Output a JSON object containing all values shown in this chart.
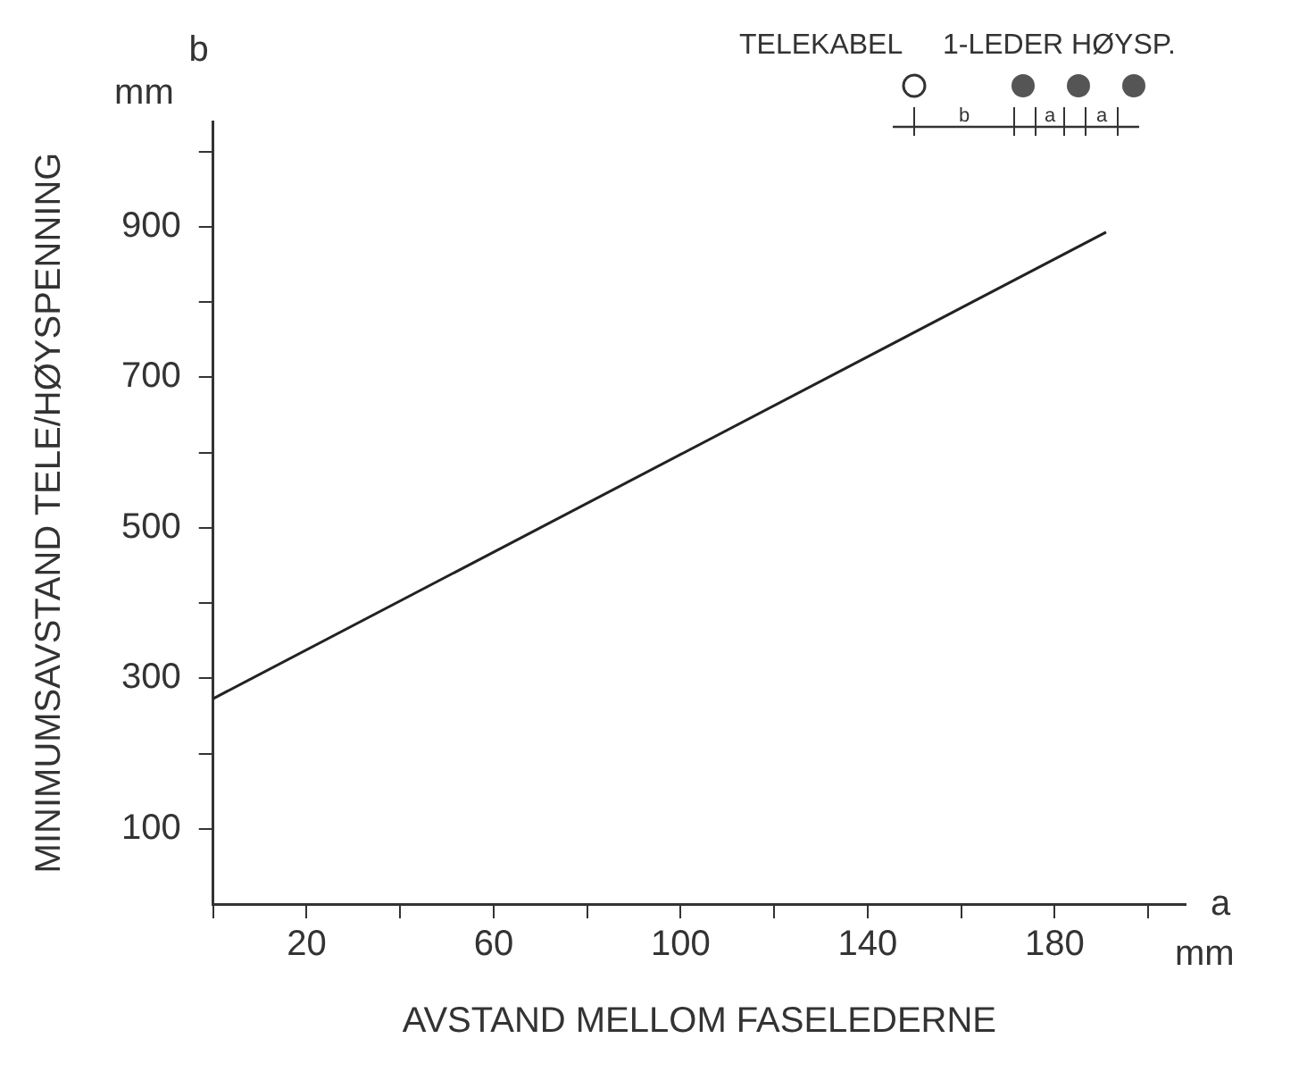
{
  "chart_data": {
    "type": "line",
    "xlabel": "AVSTAND MELLOM FASELEDERNE",
    "ylabel": "MINIMUMSAVSTAND TELE/HØYSPENNING",
    "x": [
      0,
      191
    ],
    "series": [
      {
        "color": "#222222",
        "values": [
          273,
          893
        ]
      }
    ],
    "xlim": [
      0,
      208
    ],
    "xticks": [
      {
        "value": 0,
        "label": null
      },
      20,
      {
        "value": 40,
        "label": null
      },
      60,
      {
        "value": 80,
        "label": null
      },
      100,
      {
        "value": 120,
        "label": null
      },
      140,
      {
        "value": 160,
        "label": null
      },
      180,
      {
        "value": 200,
        "label": null
      }
    ],
    "ylim": [
      0,
      1040
    ],
    "yticks": [
      100,
      {
        "value": 200,
        "label": null
      },
      300,
      {
        "value": 400,
        "label": null
      },
      500,
      {
        "value": 600,
        "label": null
      },
      700,
      {
        "value": 800,
        "label": null
      },
      900,
      {
        "value": 1000,
        "label": null
      }
    ],
    "marker": "none",
    "line_style": "solid",
    "annotations": [
      "b",
      "mm",
      "a",
      "mm",
      "TELEKABEL",
      "1-LEDER HØYSP.",
      "b",
      "a",
      "a"
    ]
  }
}
